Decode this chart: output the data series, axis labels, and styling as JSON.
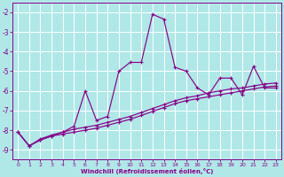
{
  "xlabel": "Windchill (Refroidissement éolien,°C)",
  "bg_color": "#b0e8e8",
  "grid_color": "#c8e8e8",
  "line_color": "#880088",
  "spine_color": "#7700aa",
  "xlim": [
    -0.5,
    23.5
  ],
  "ylim": [
    -9.5,
    -1.5
  ],
  "yticks": [
    -9,
    -8,
    -7,
    -6,
    -5,
    -4,
    -3,
    -2
  ],
  "xticks": [
    0,
    1,
    2,
    3,
    4,
    5,
    6,
    7,
    8,
    9,
    10,
    11,
    12,
    13,
    14,
    15,
    16,
    17,
    18,
    19,
    20,
    21,
    22,
    23
  ],
  "s1_x": [
    0,
    1,
    2,
    3,
    4,
    5,
    6,
    7,
    8,
    9,
    10,
    11,
    12,
    13,
    14,
    15,
    16,
    17,
    18,
    19,
    20,
    21,
    22,
    23
  ],
  "s1_y": [
    -8.1,
    -8.8,
    -8.5,
    -8.3,
    -8.1,
    -7.8,
    -6.0,
    -7.5,
    -7.3,
    -5.0,
    -4.55,
    -4.55,
    -2.1,
    -2.35,
    -4.8,
    -5.0,
    -5.85,
    -6.2,
    -5.35,
    -5.35,
    -6.2,
    -4.75,
    -5.85,
    -5.85
  ],
  "s2_x": [
    0,
    1,
    2,
    3,
    4,
    5,
    6,
    7,
    8,
    9,
    10,
    11,
    12,
    13,
    14,
    15,
    16,
    17,
    18,
    19,
    20,
    21,
    22,
    23
  ],
  "s2_y": [
    -8.1,
    -8.8,
    -8.45,
    -8.25,
    -8.1,
    -7.95,
    -7.85,
    -7.75,
    -7.6,
    -7.45,
    -7.3,
    -7.1,
    -6.9,
    -6.7,
    -6.5,
    -6.35,
    -6.25,
    -6.1,
    -6.0,
    -5.9,
    -5.85,
    -5.75,
    -5.65,
    -5.6
  ],
  "s3_x": [
    0,
    1,
    2,
    3,
    4,
    5,
    6,
    7,
    8,
    9,
    10,
    11,
    12,
    13,
    14,
    15,
    16,
    17,
    18,
    19,
    20,
    21,
    22,
    23
  ],
  "s3_y": [
    -8.1,
    -8.8,
    -8.5,
    -8.3,
    -8.2,
    -8.1,
    -8.0,
    -7.9,
    -7.75,
    -7.6,
    -7.45,
    -7.25,
    -7.05,
    -6.85,
    -6.65,
    -6.5,
    -6.4,
    -6.3,
    -6.2,
    -6.1,
    -6.0,
    -5.9,
    -5.8,
    -5.75
  ]
}
